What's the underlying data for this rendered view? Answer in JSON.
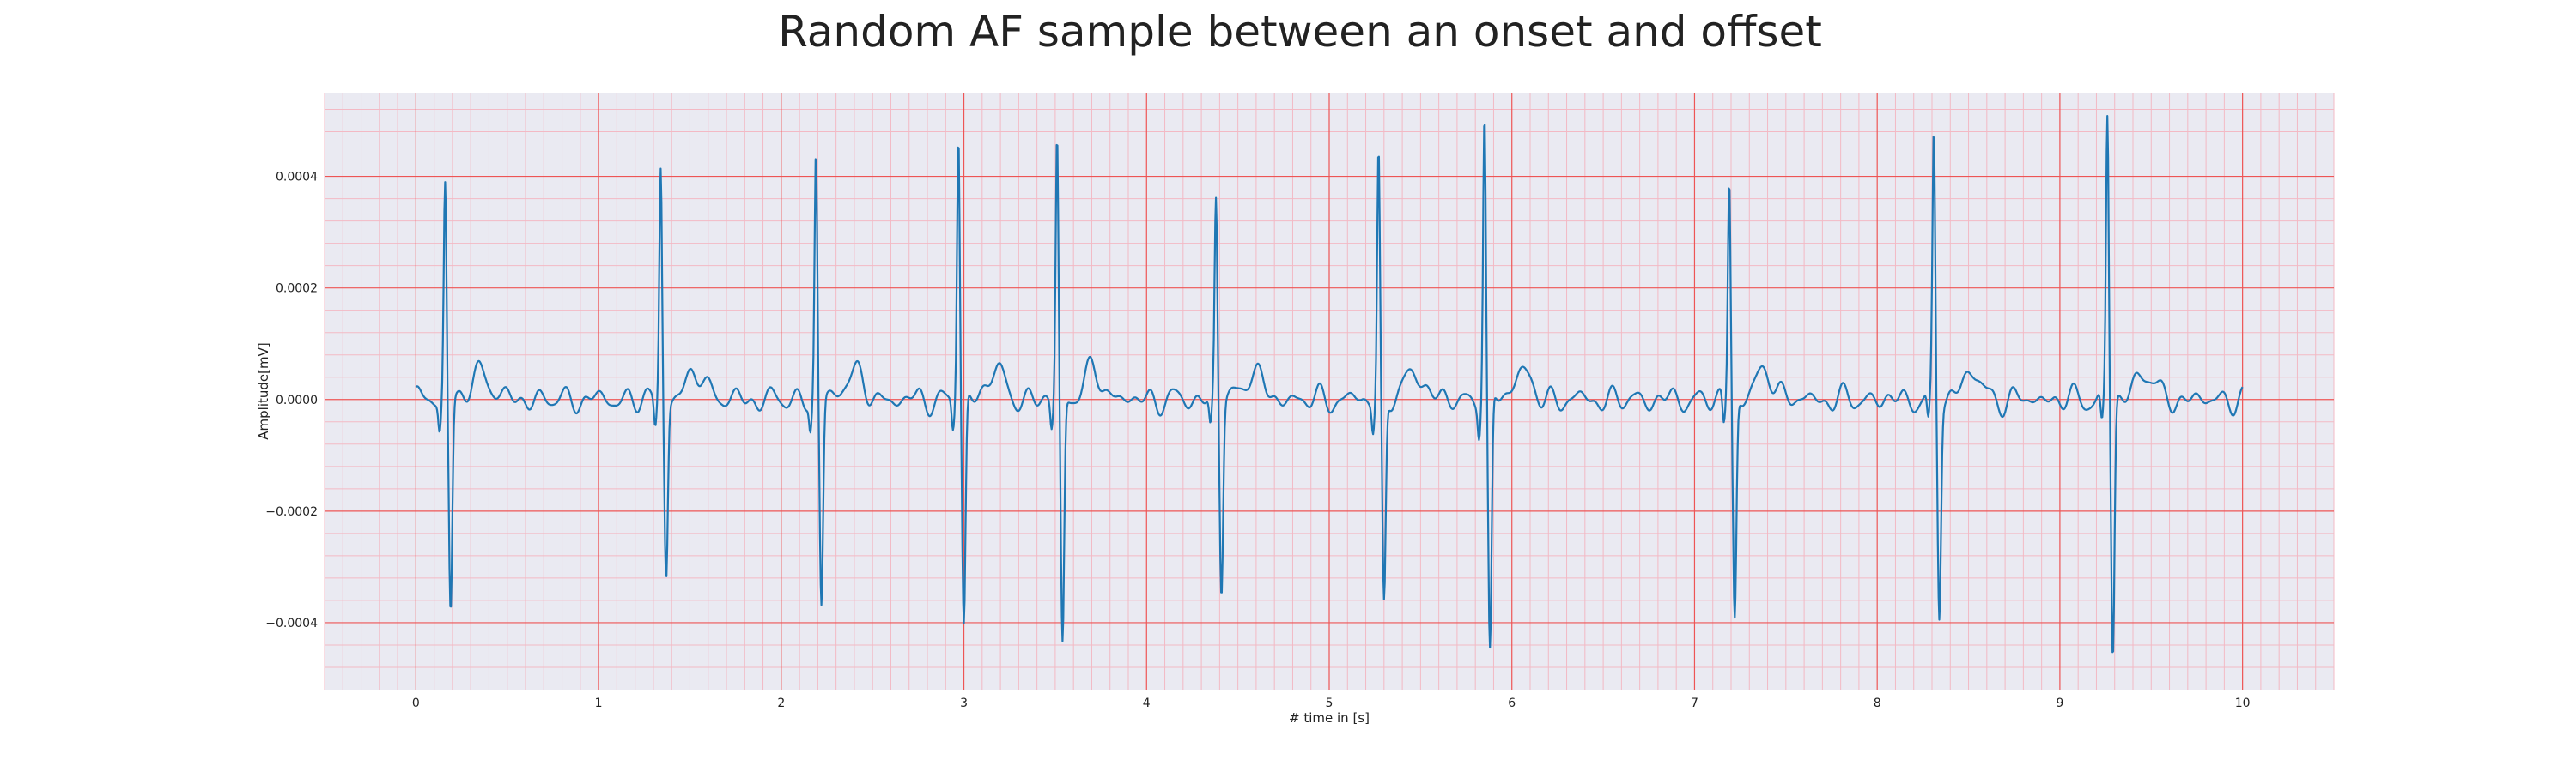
{
  "chart_data": {
    "type": "line",
    "title": "Random AF sample between an onset and offset",
    "xlabel": "# time in [s]",
    "ylabel": "Amplitude[mV]",
    "xlim": [
      -0.5,
      10.5
    ],
    "ylim": [
      -0.00052,
      0.00055
    ],
    "x_ticks": [
      0,
      1,
      2,
      3,
      4,
      5,
      6,
      7,
      8,
      9,
      10
    ],
    "x_tick_labels": [
      "0",
      "1",
      "2",
      "3",
      "4",
      "5",
      "6",
      "7",
      "8",
      "9",
      "10"
    ],
    "y_ticks": [
      -0.0004,
      -0.0002,
      0.0,
      0.0002,
      0.0004
    ],
    "y_tick_labels": [
      "−0.0004",
      "−0.0002",
      "0.0000",
      "0.0002",
      "0.0004"
    ],
    "grid": true,
    "grid_major_color": "#ee5555",
    "grid_minor_color": "#f3b9c4",
    "background_color": "#eaeaf2",
    "series": [
      {
        "color": "#1f77b4",
        "sampling_hz": 250,
        "duration_s": 10,
        "beats": [
          {
            "t": 0.16,
            "r": 0.00039,
            "s": -0.00038
          },
          {
            "t": 1.34,
            "r": 0.00042,
            "s": -0.00031
          },
          {
            "t": 2.19,
            "r": 0.00044,
            "s": -0.00037
          },
          {
            "t": 2.97,
            "r": 0.00048,
            "s": -0.00041
          },
          {
            "t": 3.51,
            "r": 0.00047,
            "s": -0.00044
          },
          {
            "t": 4.38,
            "r": 0.00036,
            "s": -0.00034
          },
          {
            "t": 5.27,
            "r": 0.00044,
            "s": -0.00037
          },
          {
            "t": 5.85,
            "r": 0.00051,
            "s": -0.00047
          },
          {
            "t": 7.19,
            "r": 0.0004,
            "s": -0.00039
          },
          {
            "t": 8.31,
            "r": 0.00047,
            "s": -0.00038
          },
          {
            "t": 9.26,
            "r": 0.00051,
            "s": -0.00046
          }
        ]
      }
    ]
  }
}
